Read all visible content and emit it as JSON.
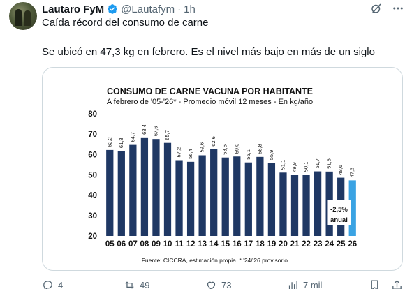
{
  "post": {
    "author_name": "Lautaro FyM",
    "handle": "@Lautafym",
    "separator": "·",
    "time": "1h",
    "text_line1": "Caída récord del consumo de carne",
    "text_line2": "Se ubicó en 47,3 kg en febrero. Es el nivel más bajo en más de un siglo"
  },
  "actions": {
    "replies": "4",
    "reposts": "49",
    "likes": "73",
    "views": "7 mil"
  },
  "chart_data": {
    "type": "bar",
    "title": "CONSUMO DE CARNE VACUNA POR HABITANTE",
    "subtitle": "A febrero de '05-'26* - Promedio móvil 12 meses -  En kg/año",
    "categories": [
      "05",
      "06",
      "07",
      "08",
      "09",
      "10",
      "11",
      "12",
      "13",
      "14",
      "15",
      "16",
      "17",
      "18",
      "19",
      "20",
      "21",
      "22",
      "23",
      "24",
      "25",
      "26"
    ],
    "values": [
      62.2,
      61.8,
      64.7,
      68.4,
      67.6,
      65.7,
      57.2,
      56.4,
      59.6,
      62.6,
      58.5,
      59.0,
      56.1,
      58.8,
      55.9,
      51.1,
      49.9,
      50.1,
      51.7,
      51.6,
      48.6,
      47.3
    ],
    "value_labels": [
      "62,2",
      "61,8",
      "64,7",
      "68,4",
      "67,6",
      "65,7",
      "57,2",
      "56,4",
      "59,6",
      "62,6",
      "58,5",
      "59,0",
      "56,1",
      "58,8",
      "55,9",
      "51,1",
      "49,9",
      "50,1",
      "51,7",
      "51,6",
      "48,6",
      "47,3"
    ],
    "yticks": [
      "20",
      "30",
      "40",
      "50",
      "60",
      "70",
      "80"
    ],
    "ylim": [
      20,
      80
    ],
    "grid": false,
    "annotation_line1": "-2,5%",
    "annotation_line2": "anual",
    "colors": {
      "bar": "#1f3864",
      "bar_last": "#3aa3e3"
    },
    "source": "Fuente: CICCRA, estimación propia. * '24/'26 provisorio."
  }
}
